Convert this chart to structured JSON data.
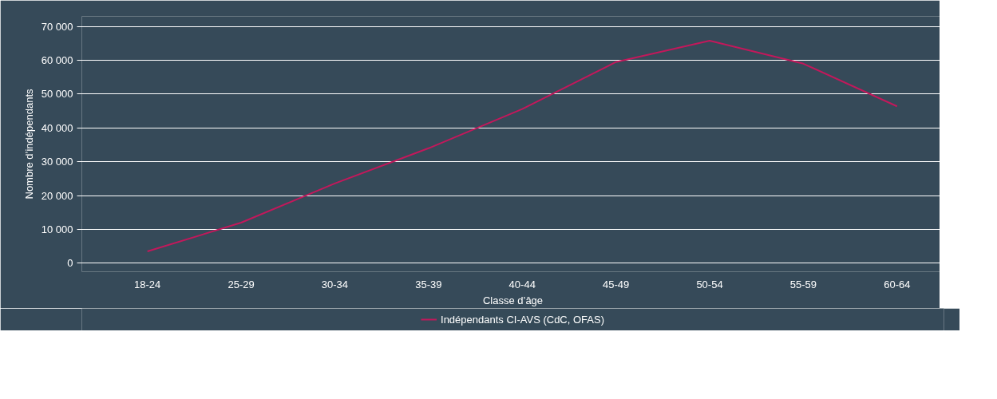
{
  "chart_data": {
    "type": "line",
    "xlabel": "Classe d’âge",
    "ylabel": "Nombre d’indépendants",
    "categories": [
      "18-24",
      "25-29",
      "30-34",
      "35-39",
      "40-44",
      "45-49",
      "50-54",
      "55-59",
      "60-64"
    ],
    "series": [
      {
        "name": "Indépendants CI-AVS (CdC, OFAS)",
        "color": "#c2185b",
        "values": [
          3500,
          12000,
          23600,
          34000,
          45600,
          59500,
          65800,
          59000,
          46400
        ]
      }
    ],
    "ylim": [
      -2500,
      73000
    ],
    "yticks": [
      {
        "value": 0,
        "label": "0"
      },
      {
        "value": 10000,
        "label": "10 000"
      },
      {
        "value": 20000,
        "label": "20 000"
      },
      {
        "value": 30000,
        "label": "30 000"
      },
      {
        "value": 40000,
        "label": "40 000"
      },
      {
        "value": 50000,
        "label": "50 000"
      },
      {
        "value": 60000,
        "label": "60 000"
      },
      {
        "value": 70000,
        "label": "70 000"
      }
    ],
    "grid": "y",
    "legend": "bottom",
    "marker": "none",
    "line_style": "solid"
  }
}
